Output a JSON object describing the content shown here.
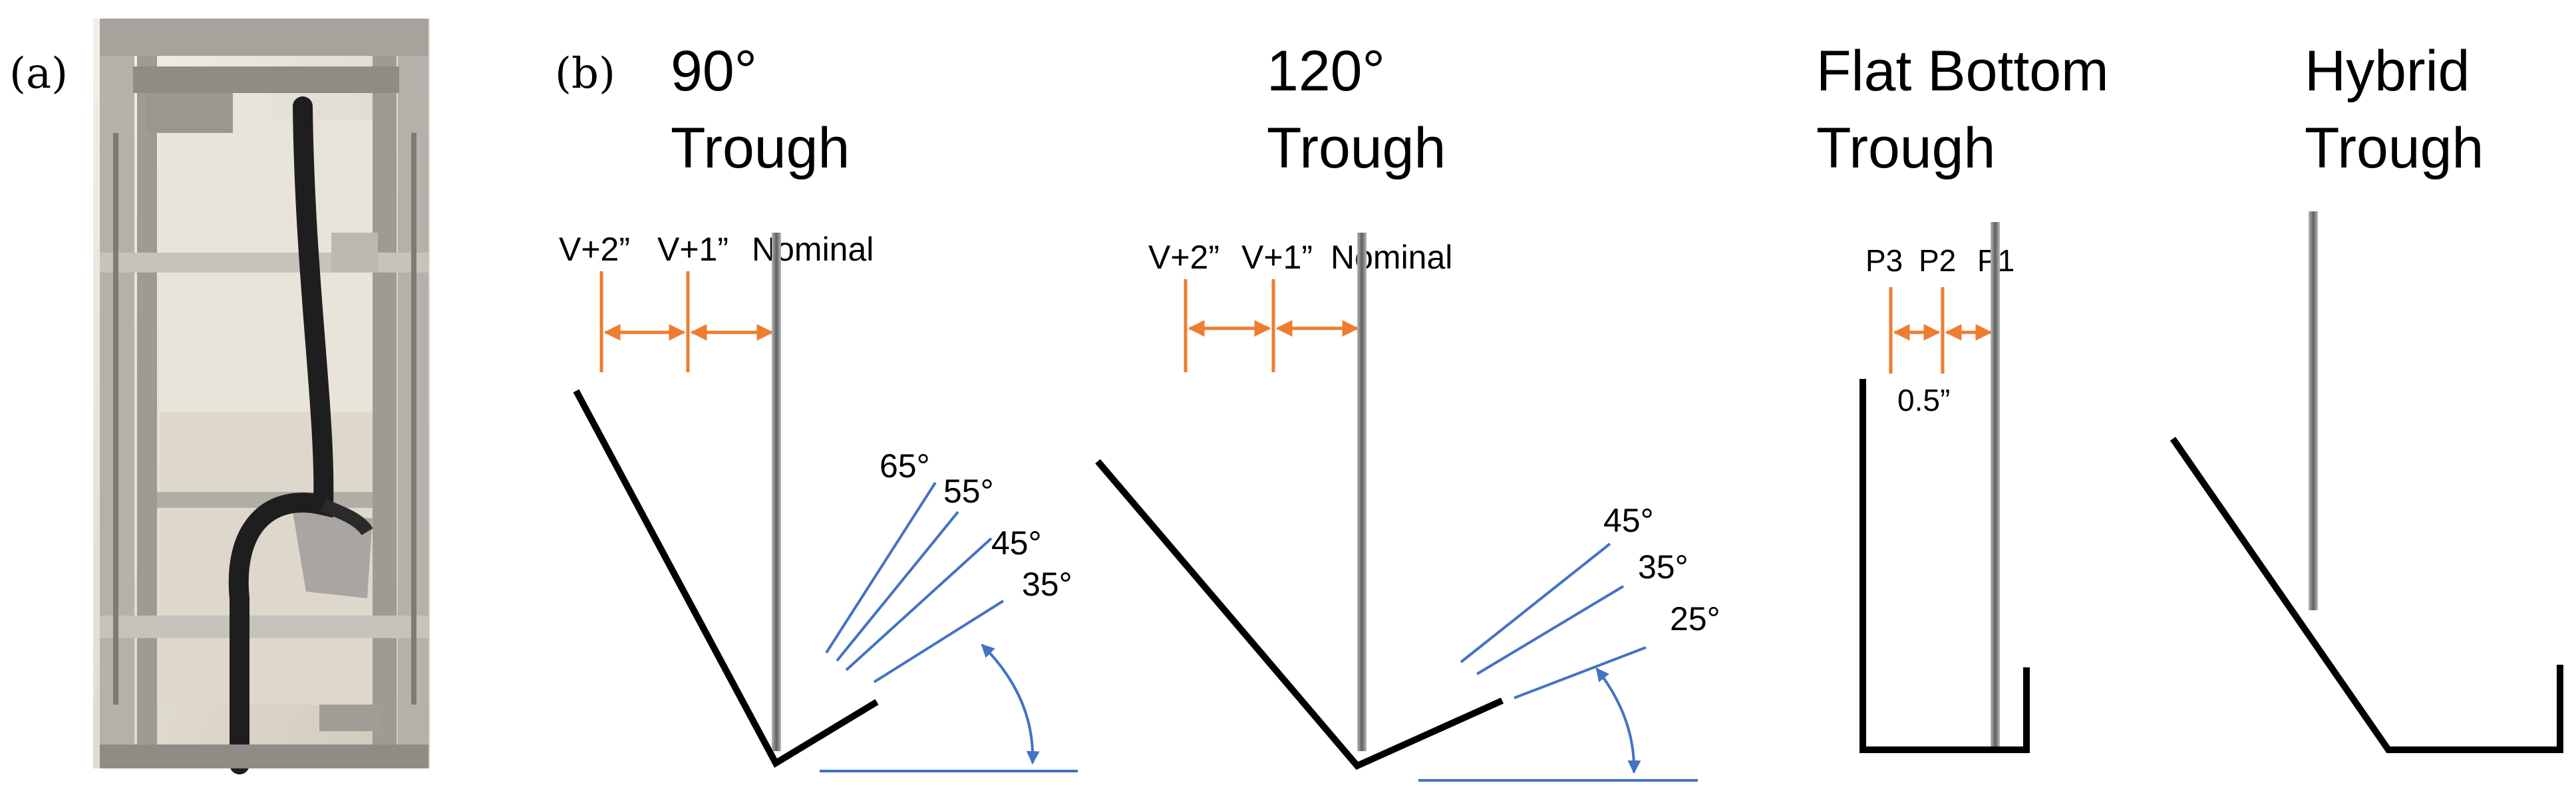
{
  "panel_a": {
    "label": "(a)",
    "photo": {
      "subject": "test-rig-photo",
      "colors": {
        "frame": "#a8a49f",
        "wall": "#e7e2d8",
        "hose": "#2a2a2a",
        "shadow": "#6d6862"
      }
    }
  },
  "panel_b": {
    "label": "(b)",
    "colors": {
      "line": "#000000",
      "dimension": "#ed7d31",
      "angle": "#4472c4",
      "rod": "#7f7f7f"
    },
    "troughs": [
      {
        "title_line1": "90°",
        "title_line2": "Trough",
        "dimension_labels": [
          "V+2”",
          "V+1”",
          "Nominal"
        ],
        "angle_labels": [
          "65°",
          "55°",
          "45°",
          "35°"
        ]
      },
      {
        "title_line1": "120°",
        "title_line2": "Trough",
        "dimension_labels": [
          "V+2”",
          "V+1”",
          "Nominal"
        ],
        "angle_labels": [
          "45°",
          "35°",
          "25°"
        ]
      },
      {
        "title_line1": "Flat Bottom",
        "title_line2": "Trough",
        "dimension_labels": [
          "P3",
          "P2",
          "P1"
        ],
        "spacing_label": "0.5”"
      },
      {
        "title_line1": "Hybrid",
        "title_line2": "Trough"
      }
    ]
  }
}
